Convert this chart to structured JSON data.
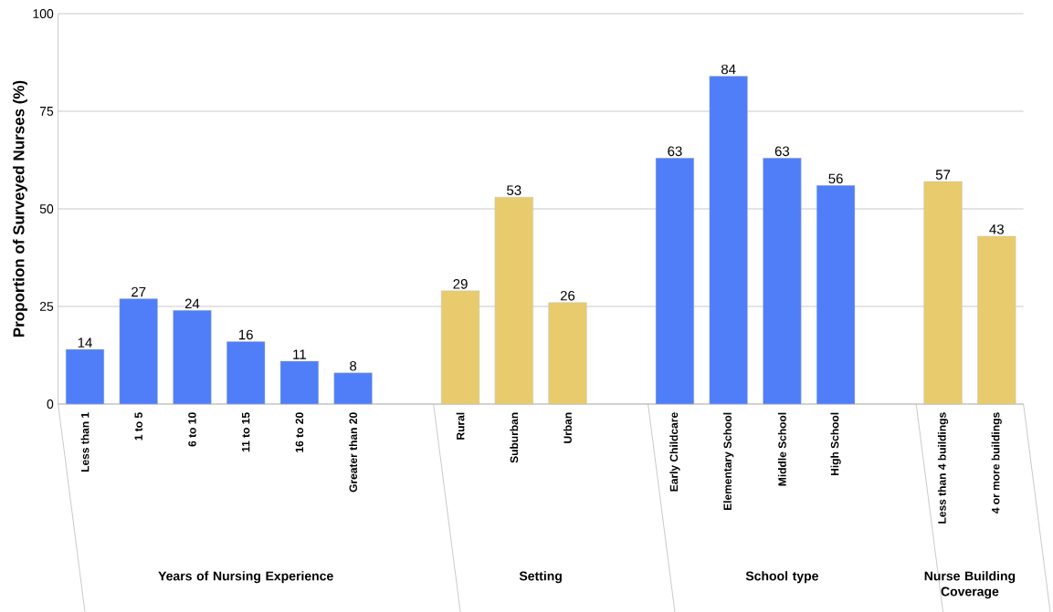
{
  "chart_data": {
    "type": "bar",
    "ylabel": "Proportion of Surveyed Nurses (%)",
    "categories": [
      "Less than 1",
      "1 to 5",
      "6 to 10",
      "11 to 15",
      "16 to 20",
      "Greater than 20",
      null,
      "Rural",
      "Suburban",
      "Urban",
      null,
      "Early Childcare",
      "Elementary School",
      "Middle School",
      "High School",
      null,
      "Less than 4 buildings",
      "4 or more buildings"
    ],
    "values": [
      14,
      27,
      24,
      16,
      11,
      8,
      null,
      29,
      53,
      26,
      null,
      63,
      84,
      63,
      56,
      null,
      57,
      43
    ],
    "colors": [
      "#4f7ef8",
      "#4f7ef8",
      "#4f7ef8",
      "#4f7ef8",
      "#4f7ef8",
      "#4f7ef8",
      null,
      "#e8cb6d",
      "#e8cb6d",
      "#e8cb6d",
      null,
      "#4f7ef8",
      "#4f7ef8",
      "#4f7ef8",
      "#4f7ef8",
      null,
      "#e8cb6d",
      "#e8cb6d"
    ],
    "annotations": [
      "Years of Nursing Experience",
      "Setting",
      "School type",
      "Nurse Building Coverage"
    ],
    "ylim": [
      0,
      100
    ],
    "yticks": [
      0,
      25,
      50,
      75,
      100
    ],
    "grid": "y",
    "data_labels": true
  }
}
